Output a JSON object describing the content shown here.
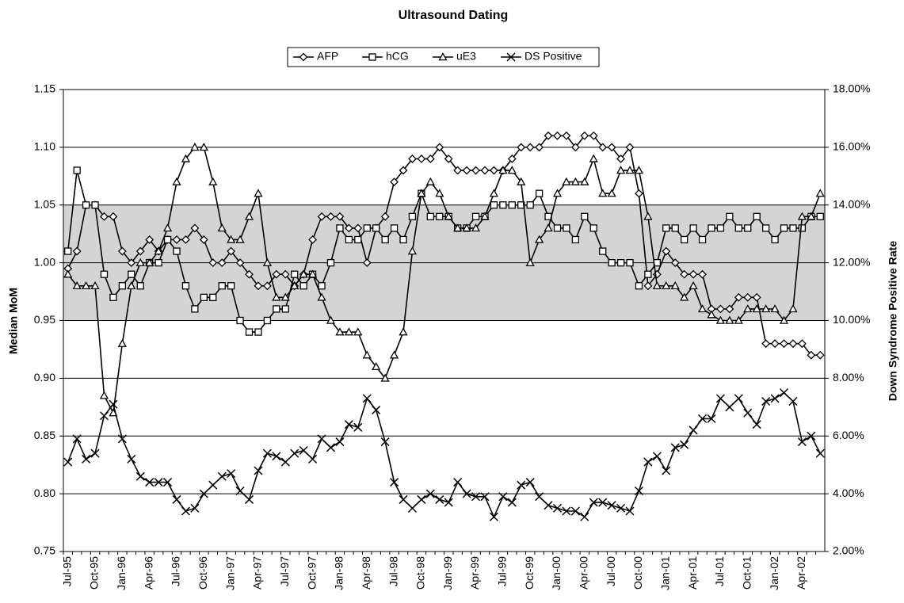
{
  "chart_data": {
    "type": "line",
    "title": "Ultrasound Dating",
    "y_label": "Median MoM",
    "y2_label": "Down Syndrome Positive Rate",
    "categories": [
      "Jul-95",
      null,
      null,
      "Oct-95",
      null,
      null,
      "Jan-96",
      null,
      null,
      "Apr-96",
      null,
      null,
      "Jul-96",
      null,
      null,
      "Oct-96",
      null,
      null,
      "Jan-97",
      null,
      null,
      "Apr-97",
      null,
      null,
      "Jul-97",
      null,
      null,
      "Oct-97",
      null,
      null,
      "Jan-98",
      null,
      null,
      "Apr-98",
      null,
      null,
      "Jul-98",
      null,
      null,
      "Oct-98",
      null,
      null,
      "Jan-99",
      null,
      null,
      "Apr-99",
      null,
      null,
      "Jul-99",
      null,
      null,
      "Oct-99",
      null,
      null,
      "Jan-00",
      null,
      null,
      "Apr-00",
      null,
      null,
      "Jul-00",
      null,
      null,
      "Oct-00",
      null,
      null,
      "Jan-01",
      null,
      null,
      "Apr-01",
      null,
      null,
      "Jul-01",
      null,
      null,
      "Oct-01",
      null,
      null,
      "Jan-02",
      null,
      null,
      "Apr-02",
      null,
      null
    ],
    "ylim": [
      0.75,
      1.15
    ],
    "yticks": [
      0.75,
      {
        "value": 0.8,
        "label": "0.80"
      },
      0.85,
      {
        "value": 0.9,
        "label": "0.90"
      },
      0.95,
      {
        "value": 1.0,
        "label": "1.00"
      },
      1.05,
      {
        "value": 1.1,
        "label": "1.10"
      },
      1.15
    ],
    "y2lim": [
      2,
      18
    ],
    "y2ticks": [
      {
        "value": 2,
        "label": "2.00%"
      },
      {
        "value": 4,
        "label": "4.00%"
      },
      {
        "value": 6,
        "label": "6.00%"
      },
      {
        "value": 8,
        "label": "8.00%"
      },
      {
        "value": 10,
        "label": "10.00%"
      },
      {
        "value": 12,
        "label": "12.00%"
      },
      {
        "value": 14,
        "label": "14.00%"
      },
      {
        "value": 16,
        "label": "16.00%"
      },
      {
        "value": 18,
        "label": "18.00%"
      }
    ],
    "shaded_band": [
      0.95,
      1.05
    ],
    "band_color": "#d4d4d4",
    "grid": true,
    "series": [
      {
        "name": "AFP",
        "marker": "diamond",
        "color": "#000000",
        "values": [
          0.995,
          1.01,
          1.05,
          1.05,
          1.04,
          1.04,
          1.01,
          1.0,
          1.01,
          1.02,
          1.01,
          1.02,
          1.02,
          1.02,
          1.03,
          1.02,
          1.0,
          1.0,
          1.01,
          1.0,
          0.99,
          0.98,
          0.98,
          0.99,
          0.99,
          0.98,
          0.99,
          1.02,
          1.04,
          1.04,
          1.04,
          1.03,
          1.03,
          1.0,
          1.03,
          1.04,
          1.07,
          1.08,
          1.09,
          1.09,
          1.09,
          1.1,
          1.09,
          1.08,
          1.08,
          1.08,
          1.08,
          1.08,
          1.08,
          1.09,
          1.1,
          1.1,
          1.1,
          1.11,
          1.11,
          1.11,
          1.1,
          1.11,
          1.11,
          1.1,
          1.1,
          1.09,
          1.1,
          1.06,
          0.98,
          0.99,
          1.01,
          1.0,
          0.99,
          0.99,
          0.99,
          0.96,
          0.96,
          0.96,
          0.97,
          0.97,
          0.97,
          0.93,
          0.93,
          0.93,
          0.93,
          0.93,
          0.92,
          0.92
        ]
      },
      {
        "name": "hCG",
        "marker": "square",
        "color": "#000000",
        "values": [
          1.01,
          1.08,
          1.05,
          1.05,
          0.99,
          0.97,
          0.98,
          0.99,
          0.98,
          1.0,
          1.0,
          1.02,
          1.01,
          0.98,
          0.96,
          0.97,
          0.97,
          0.98,
          0.98,
          0.95,
          0.94,
          0.94,
          0.95,
          0.96,
          0.96,
          0.99,
          0.98,
          0.99,
          0.98,
          1.0,
          1.03,
          1.02,
          1.02,
          1.03,
          1.03,
          1.02,
          1.03,
          1.02,
          1.04,
          1.06,
          1.04,
          1.04,
          1.04,
          1.03,
          1.03,
          1.04,
          1.04,
          1.05,
          1.05,
          1.05,
          1.05,
          1.05,
          1.06,
          1.04,
          1.03,
          1.03,
          1.02,
          1.04,
          1.03,
          1.01,
          1.0,
          1.0,
          1.0,
          0.98,
          0.99,
          1.0,
          1.03,
          1.03,
          1.02,
          1.03,
          1.02,
          1.03,
          1.03,
          1.04,
          1.03,
          1.03,
          1.04,
          1.03,
          1.02,
          1.03,
          1.03,
          1.03,
          1.04,
          1.04
        ]
      },
      {
        "name": "uE3",
        "marker": "triangle",
        "color": "#000000",
        "values": [
          0.99,
          0.98,
          0.98,
          0.98,
          0.885,
          0.87,
          0.93,
          0.98,
          1.0,
          1.0,
          1.01,
          1.03,
          1.07,
          1.09,
          1.1,
          1.1,
          1.07,
          1.03,
          1.02,
          1.02,
          1.04,
          1.06,
          1.0,
          0.97,
          0.97,
          0.98,
          0.99,
          0.99,
          0.97,
          0.95,
          0.94,
          0.94,
          0.94,
          0.92,
          0.91,
          0.9,
          0.92,
          0.94,
          1.01,
          1.06,
          1.07,
          1.06,
          1.04,
          1.03,
          1.03,
          1.03,
          1.04,
          1.06,
          1.08,
          1.08,
          1.07,
          1.0,
          1.02,
          1.03,
          1.06,
          1.07,
          1.07,
          1.07,
          1.09,
          1.06,
          1.06,
          1.08,
          1.08,
          1.08,
          1.04,
          0.98,
          0.98,
          0.98,
          0.97,
          0.98,
          0.96,
          0.955,
          0.95,
          0.95,
          0.95,
          0.96,
          0.96,
          0.96,
          0.96,
          0.95,
          0.96,
          1.04,
          1.04,
          1.06
        ]
      },
      {
        "name": "DS Positive",
        "marker": "x",
        "color": "#000000",
        "axis": "y2",
        "values": [
          5.1,
          5.9,
          5.2,
          5.4,
          6.7,
          7.1,
          5.9,
          5.2,
          4.6,
          4.4,
          4.4,
          4.4,
          3.8,
          3.4,
          3.5,
          4.0,
          4.3,
          4.6,
          4.7,
          4.1,
          3.8,
          4.8,
          5.4,
          5.3,
          5.1,
          5.4,
          5.5,
          5.2,
          5.9,
          5.6,
          5.8,
          6.4,
          6.3,
          7.3,
          6.9,
          5.8,
          4.4,
          3.8,
          3.5,
          3.8,
          4.0,
          3.8,
          3.7,
          4.4,
          4.0,
          3.9,
          3.9,
          3.2,
          3.9,
          3.7,
          4.3,
          4.4,
          3.9,
          3.6,
          3.5,
          3.4,
          3.4,
          3.2,
          3.7,
          3.7,
          3.6,
          3.5,
          3.4,
          4.1,
          5.1,
          5.3,
          4.8,
          5.6,
          5.7,
          6.2,
          6.6,
          6.6,
          7.3,
          7.0,
          7.3,
          6.8,
          6.4,
          7.2,
          7.3,
          7.5,
          7.2,
          5.8,
          6.0,
          5.4
        ]
      }
    ]
  }
}
